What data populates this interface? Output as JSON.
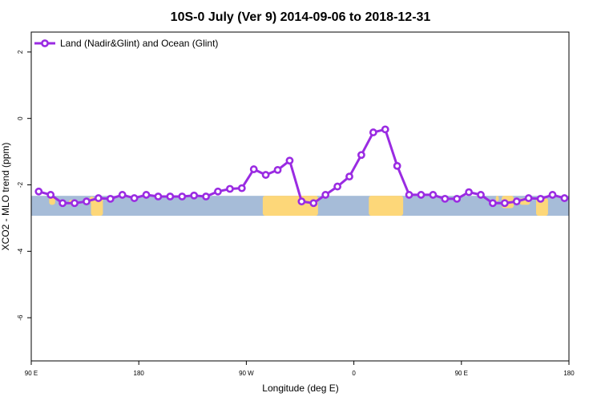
{
  "chart_data": {
    "type": "line",
    "title": "10S-0 July (Ver 9)   2014-09-06 to 2018-12-31",
    "xlabel": "Longitude (deg E)",
    "ylabel": "XCO2 - MLO trend (ppm)",
    "xlim": [
      90,
      450
    ],
    "ylim": [
      -7.3,
      2.6
    ],
    "x_ticks": [
      {
        "value": 90,
        "label": "90 E"
      },
      {
        "value": 162,
        "label": "180"
      },
      {
        "value": 234,
        "label": "90 W"
      },
      {
        "value": 306,
        "label": "0"
      },
      {
        "value": 378,
        "label": "90 E"
      },
      {
        "value": 450,
        "label": "180"
      }
    ],
    "y_ticks": [
      {
        "value": 2,
        "label": "2"
      },
      {
        "value": 0,
        "label": "0"
      },
      {
        "value": -2,
        "label": "-2"
      },
      {
        "value": -4,
        "label": "-4"
      },
      {
        "value": -6,
        "label": "-6"
      }
    ],
    "legend": {
      "position": "top-left"
    },
    "series": [
      {
        "name": "Land (Nadir&Glint) and Ocean (Glint)",
        "color": "#9a2be2",
        "x": [
          95,
          103,
          111,
          119,
          127,
          135,
          143,
          151,
          159,
          167,
          175,
          183,
          191,
          199,
          207,
          215,
          223,
          231,
          239,
          247,
          255,
          263,
          271,
          279,
          287,
          295,
          303,
          311,
          319,
          327,
          335,
          343,
          351,
          359,
          367,
          375,
          383,
          391,
          399,
          407,
          415,
          423,
          431,
          439,
          447
        ],
        "y": [
          -2.2,
          -2.3,
          -2.55,
          -2.55,
          -2.5,
          -2.4,
          -2.42,
          -2.3,
          -2.4,
          -2.3,
          -2.35,
          -2.35,
          -2.35,
          -2.32,
          -2.35,
          -2.2,
          -2.12,
          -2.1,
          -1.53,
          -1.7,
          -1.55,
          -1.27,
          -2.5,
          -2.55,
          -2.3,
          -2.05,
          -1.75,
          -1.1,
          -0.42,
          -0.33,
          -1.43,
          -2.3,
          -2.3,
          -2.3,
          -2.42,
          -2.42,
          -2.22,
          -2.3,
          -2.55,
          -2.55,
          -2.5,
          -2.4,
          -2.42,
          -2.3,
          -2.4
        ]
      }
    ],
    "background_band": {
      "y_range": [
        -2.93,
        -2.33
      ],
      "ocean_color": "#a6bcd8",
      "land_color": "#fdd779",
      "land_segments": [
        {
          "x": [
            102,
            106
          ],
          "y": [
            -2.33,
            -2.6
          ]
        },
        {
          "x": [
            115,
            120
          ],
          "y": [
            -2.45,
            -2.6
          ]
        },
        {
          "x": [
            129,
            132
          ],
          "y": [
            -2.35,
            -2.55
          ]
        },
        {
          "x": [
            130,
            138
          ],
          "y": [
            -2.4,
            -2.93
          ]
        },
        {
          "x": [
            245,
            282
          ],
          "y": [
            -2.33,
            -2.93
          ]
        },
        {
          "x": [
            316,
            339
          ],
          "y": [
            -2.33,
            -2.93
          ]
        },
        {
          "x": [
            401,
            403
          ],
          "y": [
            -2.33,
            -2.5
          ]
        },
        {
          "x": [
            405,
            413
          ],
          "y": [
            -2.33,
            -2.7
          ]
        },
        {
          "x": [
            417,
            424
          ],
          "y": [
            -2.4,
            -2.6
          ]
        },
        {
          "x": [
            428,
            436
          ],
          "y": [
            -2.4,
            -2.93
          ]
        }
      ]
    }
  }
}
